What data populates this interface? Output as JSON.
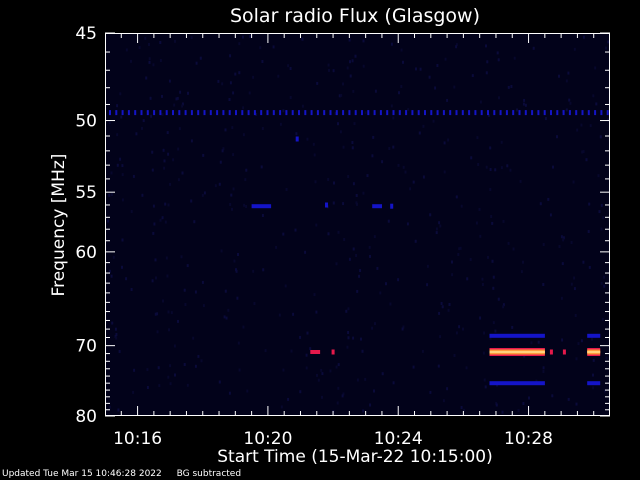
{
  "chart_data": {
    "type": "heatmap",
    "title": "Solar radio Flux (Glasgow)",
    "xlabel": "Start Time (15-Mar-22 10:15:00)",
    "ylabel": "Frequency [MHz]",
    "x_ticks": [
      "10:16",
      "10:20",
      "10:24",
      "10:28"
    ],
    "x_tick_minutes": [
      1,
      5,
      9,
      13
    ],
    "xlim_minutes": [
      0,
      15.5
    ],
    "y_ticks": [
      45,
      50,
      55,
      60,
      70,
      80
    ],
    "ylim": [
      45,
      80
    ],
    "y_scale": "reciprocal",
    "background_color": "#02021a",
    "colors": {
      "low": "#1414c8",
      "mid": "#e6194b",
      "high": "#ff9a3c",
      "peak": "#ffd27a"
    },
    "features": [
      {
        "kind": "dotted_line",
        "freq_mhz": 49.5,
        "t_start_min": 0.0,
        "t_end_min": 15.5,
        "level": "low"
      },
      {
        "kind": "dot",
        "freq_mhz": 51.2,
        "t_min": 5.9,
        "level": "low"
      },
      {
        "kind": "segment",
        "freq_mhz": 56.1,
        "t_start_min": 4.5,
        "t_end_min": 5.1,
        "level": "low"
      },
      {
        "kind": "dot",
        "freq_mhz": 56.0,
        "t_min": 6.8,
        "level": "low"
      },
      {
        "kind": "segment",
        "freq_mhz": 56.1,
        "t_start_min": 8.2,
        "t_end_min": 8.5,
        "level": "low"
      },
      {
        "kind": "dot",
        "freq_mhz": 56.1,
        "t_min": 8.8,
        "level": "low"
      },
      {
        "kind": "segment",
        "freq_mhz": 70.8,
        "t_start_min": 6.3,
        "t_end_min": 6.6,
        "level": "mid"
      },
      {
        "kind": "dot",
        "freq_mhz": 70.8,
        "t_min": 7.0,
        "level": "mid"
      },
      {
        "kind": "segment",
        "freq_mhz": 68.8,
        "t_start_min": 11.8,
        "t_end_min": 13.5,
        "level": "low"
      },
      {
        "kind": "segment",
        "freq_mhz": 68.8,
        "t_start_min": 14.8,
        "t_end_min": 15.2,
        "level": "low"
      },
      {
        "kind": "band",
        "freq_mhz": 70.8,
        "t_start_min": 11.8,
        "t_end_min": 13.5,
        "level": "high"
      },
      {
        "kind": "dot",
        "freq_mhz": 70.8,
        "t_min": 13.7,
        "level": "mid"
      },
      {
        "kind": "dot",
        "freq_mhz": 70.8,
        "t_min": 14.1,
        "level": "mid"
      },
      {
        "kind": "band",
        "freq_mhz": 70.8,
        "t_start_min": 14.8,
        "t_end_min": 15.2,
        "level": "high"
      },
      {
        "kind": "segment",
        "freq_mhz": 75.0,
        "t_start_min": 11.8,
        "t_end_min": 13.5,
        "level": "low"
      },
      {
        "kind": "segment",
        "freq_mhz": 75.0,
        "t_start_min": 14.8,
        "t_end_min": 15.2,
        "level": "low"
      }
    ]
  },
  "footer": {
    "updated": "Updated Tue Mar 15 10:46:28 2022",
    "note": "BG subtracted"
  }
}
